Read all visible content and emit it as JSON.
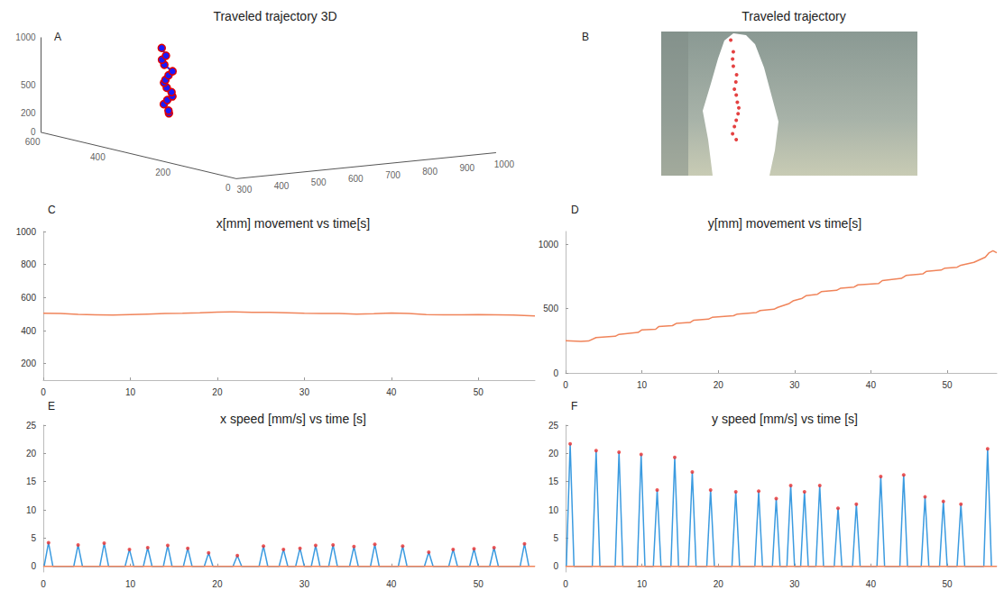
{
  "chart_data": [
    {
      "type": "scatter3d",
      "panel": "A",
      "title": "Traveled trajectory 3D",
      "x": [
        505,
        495,
        500,
        505,
        510,
        512,
        508,
        505,
        500,
        504,
        506,
        497,
        495,
        497,
        490
      ],
      "y": [
        250,
        290,
        340,
        385,
        430,
        470,
        510,
        560,
        600,
        650,
        700,
        760,
        810,
        860,
        940
      ],
      "z": [
        440,
        430,
        450,
        445,
        435,
        440,
        450,
        455,
        445,
        440,
        430,
        445,
        450,
        440,
        445
      ],
      "xlim": [
        300,
        1000
      ],
      "xticks": [
        300,
        400,
        500,
        600,
        700,
        800,
        900,
        1000
      ],
      "ylim": [
        0,
        1000
      ],
      "yticks": [
        0,
        200,
        500,
        1000
      ],
      "zlim": [
        0,
        600
      ],
      "zticks": [
        0,
        200,
        400,
        600
      ],
      "color": "#1a1aff",
      "marker": "circle"
    },
    {
      "type": "image",
      "panel": "B",
      "title": "Traveled trajectory"
    },
    {
      "type": "line",
      "panel": "C",
      "title": "x[mm] movement vs time[s]",
      "series": [
        {
          "color": "#f0845a",
          "x": [
            0,
            2,
            4,
            6,
            8,
            10,
            12,
            14,
            16,
            18,
            20,
            22,
            24,
            26,
            28,
            30,
            32,
            34,
            36,
            38,
            40,
            42,
            44,
            46,
            48,
            50,
            52,
            54,
            56.5
          ],
          "values": [
            505,
            503,
            498,
            496,
            494,
            497,
            500,
            503,
            505,
            508,
            512,
            513,
            511,
            510,
            508,
            505,
            503,
            504,
            500,
            502,
            506,
            503,
            497,
            496,
            495,
            497,
            496,
            494,
            488
          ]
        }
      ],
      "xlim": [
        0,
        56.5
      ],
      "xticks": [
        0,
        10,
        20,
        30,
        40,
        50
      ],
      "ylim": [
        100,
        1000
      ],
      "yticks": [
        200,
        400,
        600,
        800,
        1000
      ],
      "grid": false
    },
    {
      "type": "line",
      "panel": "D",
      "title": "y[mm] movement vs time[s]",
      "series": [
        {
          "color": "#f0845a",
          "x": [
            0,
            2,
            3,
            4,
            6.5,
            7,
            9.5,
            10,
            11.8,
            12.2,
            14,
            14.5,
            16.3,
            16.8,
            18.7,
            19.2,
            22,
            22.5,
            25,
            25.5,
            27.3,
            27.8,
            29.3,
            29.8,
            31,
            31.5,
            33,
            33.5,
            35.5,
            36,
            37.8,
            38.3,
            41,
            41.5,
            44,
            44.6,
            46.8,
            47.3,
            49.2,
            49.7,
            51.3,
            51.8,
            53.5,
            55,
            55.5,
            56,
            56.5
          ],
          "values": [
            250,
            245,
            248,
            275,
            285,
            300,
            315,
            335,
            340,
            360,
            368,
            385,
            392,
            410,
            418,
            432,
            445,
            458,
            470,
            485,
            495,
            510,
            540,
            560,
            580,
            600,
            612,
            632,
            642,
            658,
            668,
            685,
            695,
            718,
            735,
            758,
            770,
            790,
            800,
            815,
            822,
            838,
            860,
            900,
            935,
            950,
            935
          ]
        }
      ],
      "xlim": [
        0,
        56.5
      ],
      "xticks": [
        0,
        10,
        20,
        30,
        40,
        50
      ],
      "ylim": [
        0,
        1100
      ],
      "yticks": [
        0,
        500,
        1000
      ],
      "grid": false
    },
    {
      "type": "line",
      "panel": "E",
      "title": "x speed [mm/s] vs time [s]",
      "series": [
        {
          "color": "#3b9be0",
          "x": [
            0.1,
            0.6,
            1.1,
            3.5,
            4.0,
            4.5,
            6.5,
            7.0,
            7.5,
            9.4,
            9.9,
            10.4,
            11.5,
            12.0,
            12.5,
            13.8,
            14.3,
            14.8,
            16.1,
            16.6,
            17.1,
            18.5,
            19.0,
            19.5,
            21.8,
            22.3,
            22.8,
            24.8,
            25.3,
            25.8,
            27.1,
            27.6,
            28.1,
            29.0,
            29.5,
            30.0,
            30.8,
            31.3,
            31.8,
            32.8,
            33.3,
            33.8,
            35.2,
            35.7,
            36.2,
            37.6,
            38.1,
            38.6,
            40.8,
            41.3,
            41.8,
            43.8,
            44.3,
            44.8,
            46.6,
            47.1,
            47.6,
            49.0,
            49.5,
            50.0,
            51.3,
            51.8,
            52.3,
            54.8,
            55.3,
            55.8
          ],
          "values": [
            0,
            4.2,
            0,
            0,
            3.8,
            0,
            0,
            4.1,
            0,
            0,
            3.0,
            0,
            0,
            3.3,
            0,
            0,
            3.7,
            0,
            0,
            3.2,
            0,
            0,
            2.4,
            0,
            0,
            1.9,
            0,
            0,
            3.6,
            0,
            0,
            3.0,
            0,
            0,
            3.2,
            0,
            0,
            3.7,
            0,
            0,
            3.8,
            0,
            0,
            3.5,
            0,
            0,
            3.9,
            0,
            0,
            3.6,
            0,
            0,
            2.5,
            0,
            0,
            3.0,
            0,
            0,
            3.1,
            0,
            0,
            3.3,
            0,
            0,
            4.0,
            0
          ]
        },
        {
          "color": "#f0845a",
          "x": [
            0,
            56.5
          ],
          "values": [
            0,
            0
          ]
        },
        {
          "type": "scatter",
          "color": "#e83030",
          "marker": "dot",
          "x": [
            0.6,
            4.0,
            7.0,
            9.9,
            12.0,
            14.3,
            16.6,
            19.0,
            22.3,
            25.3,
            27.6,
            29.5,
            31.3,
            33.3,
            35.7,
            38.1,
            41.3,
            44.3,
            47.1,
            49.5,
            51.8,
            55.3
          ],
          "values": [
            4.2,
            3.8,
            4.1,
            3.0,
            3.3,
            3.7,
            3.2,
            2.4,
            1.9,
            3.6,
            3.0,
            3.2,
            3.7,
            3.8,
            3.5,
            3.9,
            3.6,
            2.5,
            3.0,
            3.1,
            3.3,
            4.0
          ]
        }
      ],
      "xlim": [
        0,
        56.5
      ],
      "xticks": [
        0,
        10,
        20,
        30,
        40,
        50
      ],
      "ylim": [
        -1,
        25
      ],
      "yticks": [
        0,
        5,
        10,
        15,
        20,
        25
      ],
      "grid": false
    },
    {
      "type": "line",
      "panel": "F",
      "title": "y speed [mm/s] vs time [s]",
      "series": [
        {
          "color": "#3b9be0",
          "x": [
            0.1,
            0.6,
            1.1,
            3.5,
            4.0,
            4.5,
            6.5,
            7.0,
            7.5,
            9.4,
            9.9,
            10.4,
            11.5,
            12.0,
            12.5,
            13.8,
            14.3,
            14.8,
            16.1,
            16.6,
            17.1,
            18.5,
            19.0,
            19.5,
            21.8,
            22.3,
            22.8,
            24.8,
            25.3,
            25.8,
            27.1,
            27.6,
            28.1,
            29.0,
            29.5,
            30.0,
            30.8,
            31.3,
            31.8,
            32.8,
            33.3,
            33.8,
            35.2,
            35.7,
            36.2,
            37.6,
            38.1,
            38.6,
            40.8,
            41.3,
            41.8,
            43.8,
            44.3,
            44.8,
            46.6,
            47.1,
            47.6,
            49.0,
            49.5,
            50.0,
            51.3,
            51.8,
            52.3,
            54.8,
            55.3,
            55.8
          ],
          "values": [
            0,
            21.7,
            0,
            0,
            20.5,
            0,
            0,
            20.2,
            0,
            0,
            19.8,
            0,
            0,
            13.5,
            0,
            0,
            19.3,
            0,
            0,
            16.7,
            0,
            0,
            13.5,
            0,
            0,
            13.2,
            0,
            0,
            13.3,
            0,
            0,
            12,
            0,
            0,
            14.3,
            0,
            0,
            13.2,
            0,
            0,
            14.3,
            0,
            0,
            10.3,
            0,
            0,
            11,
            0,
            0,
            15.9,
            0,
            0,
            16.2,
            0,
            0,
            12.3,
            0,
            0,
            11.5,
            0,
            0,
            11,
            0,
            0,
            20.8,
            0
          ]
        },
        {
          "color": "#f0845a",
          "x": [
            0,
            56.5
          ],
          "values": [
            0,
            0
          ]
        },
        {
          "type": "scatter",
          "color": "#e83030",
          "marker": "dot",
          "x": [
            0.6,
            4.0,
            7.0,
            9.9,
            12.0,
            14.3,
            16.6,
            19.0,
            22.3,
            25.3,
            27.6,
            29.5,
            31.3,
            33.3,
            35.7,
            38.1,
            41.3,
            44.3,
            47.1,
            49.5,
            51.8,
            55.3
          ],
          "values": [
            21.7,
            20.5,
            20.2,
            19.8,
            13.5,
            19.3,
            16.7,
            13.5,
            13.2,
            13.3,
            12,
            14.3,
            13.2,
            14.3,
            10.3,
            11,
            15.9,
            16.2,
            12.3,
            11.5,
            11,
            20.8
          ]
        }
      ],
      "xlim": [
        0,
        56.5
      ],
      "xticks": [
        0,
        10,
        20,
        30,
        40,
        50
      ],
      "ylim": [
        -1,
        25
      ],
      "yticks": [
        0,
        5,
        10,
        15,
        20,
        25
      ],
      "grid": false
    }
  ]
}
